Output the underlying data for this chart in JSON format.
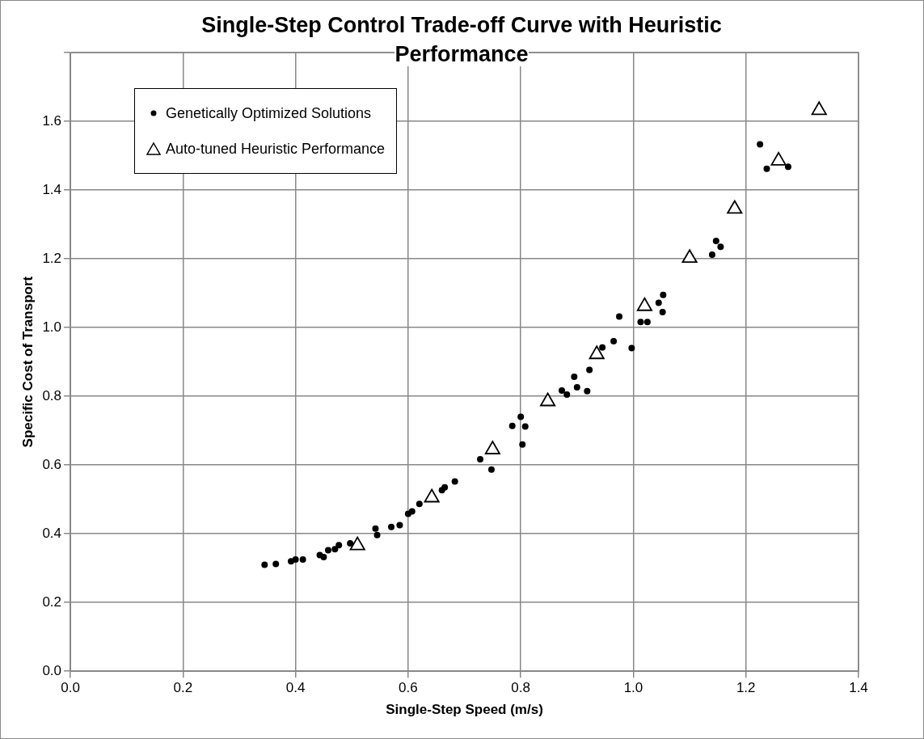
{
  "chart_data": {
    "type": "scatter",
    "title": "Single-Step Control Trade-off Curve with Heuristic Performance",
    "xlabel": "Single-Step Speed (m/s)",
    "ylabel": "Specific Cost of Transport",
    "xlim": [
      0,
      1.4
    ],
    "xticks": [
      {
        "value": 0,
        "label": "0.0"
      },
      {
        "value": 0.2,
        "label": "0.2"
      },
      {
        "value": 0.4,
        "label": "0.4"
      },
      {
        "value": 0.6,
        "label": "0.6"
      },
      {
        "value": 0.8,
        "label": "0.8"
      },
      {
        "value": 1,
        "label": "1.0"
      },
      {
        "value": 1.2,
        "label": "1.2"
      },
      {
        "value": 1.4,
        "label": "1.4"
      }
    ],
    "ylim": [
      0,
      1.8
    ],
    "yticks": [
      {
        "value": 0,
        "label": "0.0"
      },
      {
        "value": 0.2,
        "label": "0.2"
      },
      {
        "value": 0.4,
        "label": "0.4"
      },
      {
        "value": 0.6,
        "label": "0.6"
      },
      {
        "value": 0.8,
        "label": "0.8"
      },
      {
        "value": 1,
        "label": "1.0"
      },
      {
        "value": 1.2,
        "label": "1.2"
      },
      {
        "value": 1.4,
        "label": "1.4"
      },
      {
        "value": 1.6,
        "label": "1.6"
      },
      {
        "value": 1.8,
        "label": null
      }
    ],
    "grid": true,
    "legend": "top left",
    "series": [
      {
        "name": "Genetically Optimized Solutions",
        "color": "#000000",
        "marker": "circle",
        "x": [
          0.345,
          0.365,
          0.392,
          0.4,
          0.413,
          0.443,
          0.45,
          0.458,
          0.47,
          0.477,
          0.497,
          0.542,
          0.545,
          0.57,
          0.585,
          0.6,
          0.607,
          0.62,
          0.66,
          0.665,
          0.683,
          0.728,
          0.748,
          0.785,
          0.8,
          0.808,
          0.803,
          0.873,
          0.882,
          0.895,
          0.9,
          0.918,
          0.922,
          0.945,
          0.965,
          0.975,
          0.997,
          1.013,
          1.025,
          1.045,
          1.053,
          1.052,
          1.14,
          1.147,
          1.155,
          1.225,
          1.237,
          1.275
        ],
        "values": [
          0.31,
          0.312,
          0.32,
          0.325,
          0.325,
          0.338,
          0.332,
          0.352,
          0.355,
          0.367,
          0.372,
          0.415,
          0.396,
          0.42,
          0.425,
          0.458,
          0.465,
          0.487,
          0.527,
          0.535,
          0.552,
          0.617,
          0.587,
          0.714,
          0.74,
          0.712,
          0.66,
          0.817,
          0.805,
          0.857,
          0.826,
          0.815,
          0.877,
          0.942,
          0.96,
          1.032,
          0.94,
          1.016,
          1.016,
          1.072,
          1.095,
          1.045,
          1.212,
          1.252,
          1.235,
          1.533,
          1.462,
          1.468
        ]
      },
      {
        "name": "Auto-tuned Heuristic Performance",
        "color": "#000000",
        "marker": "triangle",
        "x": [
          0.51,
          0.642,
          0.75,
          0.848,
          0.935,
          1.02,
          1.1,
          1.18,
          1.258,
          1.33
        ],
        "values": [
          0.366,
          0.505,
          0.645,
          0.785,
          0.922,
          1.062,
          1.202,
          1.345,
          1.485,
          1.632
        ]
      }
    ]
  }
}
